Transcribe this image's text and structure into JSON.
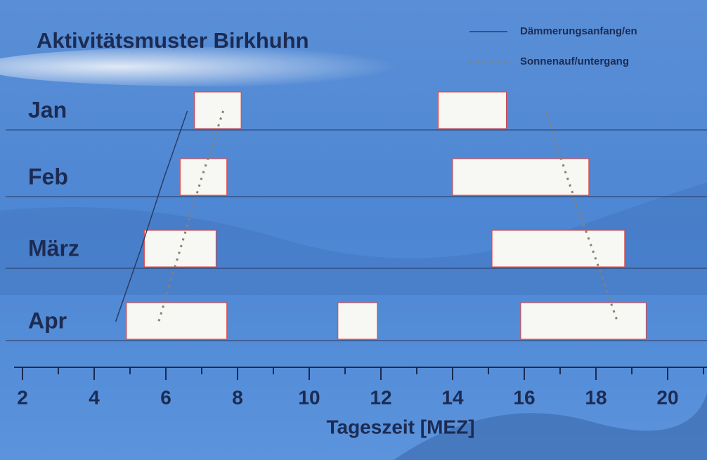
{
  "chart_data": {
    "type": "range-bar",
    "title": "Aktivitätsmuster  Birkhuhn",
    "x_label": "Tageszeit  [MEZ]",
    "categories": [
      "Jan",
      "Feb",
      "März",
      "Apr"
    ],
    "intervals": [
      [
        [
          6.8,
          8.1
        ],
        [
          13.6,
          15.5
        ]
      ],
      [
        [
          6.4,
          7.7
        ],
        [
          14.0,
          17.8
        ]
      ],
      [
        [
          5.4,
          7.4
        ],
        [
          15.1,
          18.8
        ]
      ],
      [
        [
          4.9,
          7.7
        ],
        [
          10.8,
          11.9
        ],
        [
          15.9,
          19.4
        ]
      ]
    ],
    "bar_color": "#f7f7f3",
    "lines": [
      {
        "name": "Dämmerungsanfang/en",
        "style": "solid",
        "color": "#2a3d66",
        "morning": [
          6.6,
          5.95,
          5.3,
          4.6
        ]
      },
      {
        "name": "Sonnenauf/untergang",
        "style": "dotted",
        "color": "#8a7f73",
        "morning": [
          7.6,
          7.0,
          6.4,
          5.8
        ],
        "evening": [
          16.6,
          17.2,
          17.9,
          18.6
        ]
      }
    ],
    "xlim": [
      2,
      21
    ],
    "xticks": [
      2,
      4,
      6,
      8,
      10,
      12,
      14,
      16,
      18,
      20
    ],
    "minor_tick_step": 1
  }
}
